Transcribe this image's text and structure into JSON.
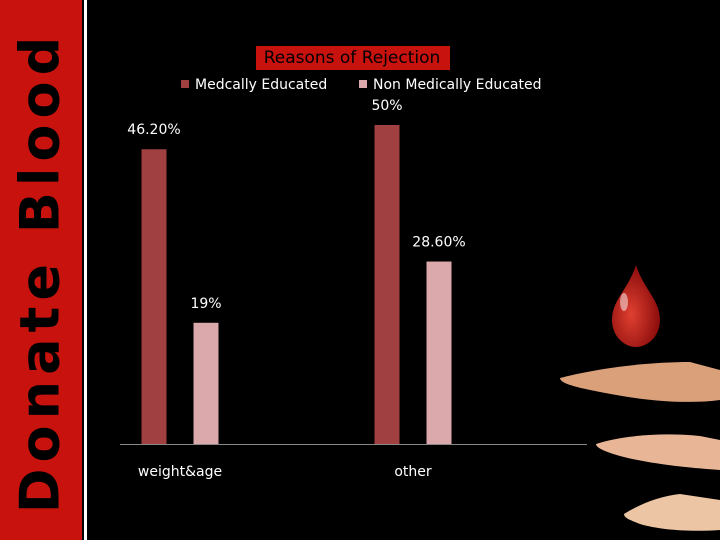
{
  "banner": "Donate Blood",
  "chart_data": {
    "type": "bar",
    "title": "Reasons of Rejection",
    "categories": [
      "weight&age",
      "other"
    ],
    "series": [
      {
        "name": "Medcally Educated",
        "color": "#a04040",
        "values": [
          46.2,
          50
        ],
        "value_labels": [
          "46.20%",
          "50%"
        ]
      },
      {
        "name": "Non Medically Educated",
        "color": "#dba9ab",
        "values": [
          19,
          28.6
        ],
        "value_labels": [
          "19%",
          "28.60%"
        ]
      }
    ],
    "ylim": [
      0,
      50
    ],
    "legend": "top"
  }
}
